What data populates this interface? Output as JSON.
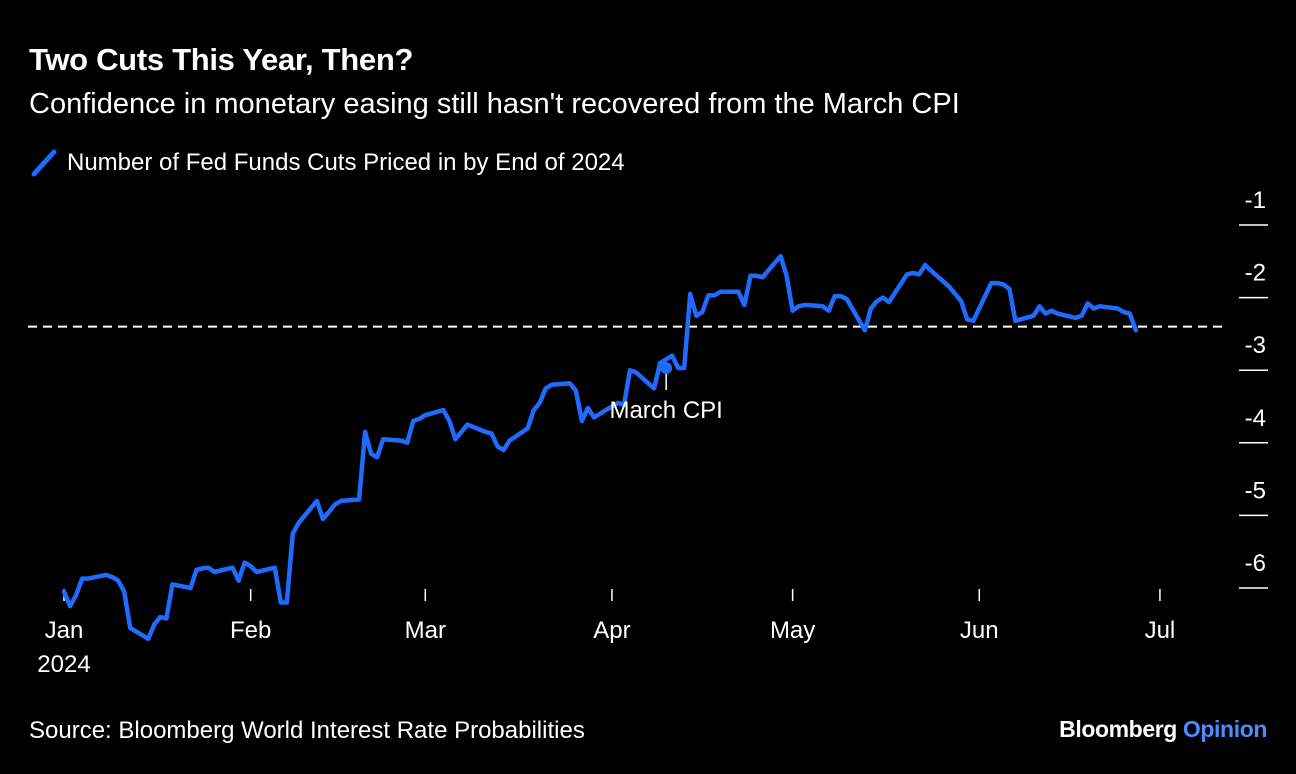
{
  "header": {
    "title": "Two Cuts This Year, Then?",
    "subtitle": "Confidence in monetary easing still hasn't recovered from the March CPI"
  },
  "footer": {
    "source": "Source: Bloomberg World Interest Rate Probabilities",
    "brand_primary": "Bloomberg",
    "brand_secondary": "Opinion"
  },
  "colors": {
    "background": "#000000",
    "series": "#1f6bff",
    "text": "#ffffff",
    "brand_accent": "#4b8dff"
  },
  "chart_data": {
    "type": "line",
    "title": "Two Cuts This Year, Then?",
    "subtitle": "Confidence in monetary easing still hasn't recovered from the March CPI",
    "series": [
      {
        "name": "Number of Fed Funds Cuts Priced in by End of 2024",
        "points": [
          [
            "2024-01-01",
            -6.05
          ],
          [
            "2024-01-02",
            -6.25
          ],
          [
            "2024-01-03",
            -6.1
          ],
          [
            "2024-01-04",
            -5.87
          ],
          [
            "2024-01-05",
            -5.87
          ],
          [
            "2024-01-08",
            -5.82
          ],
          [
            "2024-01-09",
            -5.85
          ],
          [
            "2024-01-10",
            -5.9
          ],
          [
            "2024-01-11",
            -6.05
          ],
          [
            "2024-01-12",
            -6.55
          ],
          [
            "2024-01-15",
            -6.7
          ],
          [
            "2024-01-16",
            -6.5
          ],
          [
            "2024-01-17",
            -6.4
          ],
          [
            "2024-01-18",
            -6.42
          ],
          [
            "2024-01-19",
            -5.95
          ],
          [
            "2024-01-22",
            -6.0
          ],
          [
            "2024-01-23",
            -5.75
          ],
          [
            "2024-01-24",
            -5.73
          ],
          [
            "2024-01-25",
            -5.72
          ],
          [
            "2024-01-26",
            -5.78
          ],
          [
            "2024-01-29",
            -5.72
          ],
          [
            "2024-01-30",
            -5.9
          ],
          [
            "2024-01-31",
            -5.65
          ],
          [
            "2024-02-01",
            -5.7
          ],
          [
            "2024-02-02",
            -5.78
          ],
          [
            "2024-02-05",
            -5.72
          ],
          [
            "2024-02-06",
            -6.2
          ],
          [
            "2024-02-07",
            -6.2
          ],
          [
            "2024-02-08",
            -5.25
          ],
          [
            "2024-02-09",
            -5.1
          ],
          [
            "2024-02-12",
            -4.8
          ],
          [
            "2024-02-13",
            -5.05
          ],
          [
            "2024-02-14",
            -4.95
          ],
          [
            "2024-02-15",
            -4.85
          ],
          [
            "2024-02-16",
            -4.8
          ],
          [
            "2024-02-19",
            -4.78
          ],
          [
            "2024-02-20",
            -3.85
          ],
          [
            "2024-02-21",
            -4.15
          ],
          [
            "2024-02-22",
            -4.2
          ],
          [
            "2024-02-23",
            -3.95
          ],
          [
            "2024-02-26",
            -3.97
          ],
          [
            "2024-02-27",
            -4.0
          ],
          [
            "2024-02-28",
            -3.7
          ],
          [
            "2024-02-29",
            -3.67
          ],
          [
            "2024-03-01",
            -3.62
          ],
          [
            "2024-03-04",
            -3.55
          ],
          [
            "2024-03-05",
            -3.7
          ],
          [
            "2024-03-06",
            -3.95
          ],
          [
            "2024-03-07",
            -3.85
          ],
          [
            "2024-03-08",
            -3.75
          ],
          [
            "2024-03-11",
            -3.85
          ],
          [
            "2024-03-12",
            -3.87
          ],
          [
            "2024-03-13",
            -4.05
          ],
          [
            "2024-03-14",
            -4.1
          ],
          [
            "2024-03-15",
            -3.97
          ],
          [
            "2024-03-18",
            -3.8
          ],
          [
            "2024-03-19",
            -3.55
          ],
          [
            "2024-03-20",
            -3.45
          ],
          [
            "2024-03-21",
            -3.25
          ],
          [
            "2024-03-22",
            -3.2
          ],
          [
            "2024-03-25",
            -3.18
          ],
          [
            "2024-03-26",
            -3.28
          ],
          [
            "2024-03-27",
            -3.7
          ],
          [
            "2024-03-28",
            -3.52
          ],
          [
            "2024-03-29",
            -3.65
          ],
          [
            "2024-04-01",
            -3.5
          ],
          [
            "2024-04-02",
            -3.45
          ],
          [
            "2024-04-03",
            -3.48
          ],
          [
            "2024-04-04",
            -3.0
          ],
          [
            "2024-04-05",
            -3.03
          ],
          [
            "2024-04-08",
            -3.25
          ],
          [
            "2024-04-09",
            -2.9
          ],
          [
            "2024-04-10",
            -2.85
          ],
          [
            "2024-04-11",
            -2.8
          ],
          [
            "2024-04-12",
            -2.97
          ],
          [
            "2024-04-13",
            -2.97
          ],
          [
            "2024-04-14",
            -1.95
          ],
          [
            "2024-04-15",
            -2.25
          ],
          [
            "2024-04-16",
            -2.2
          ],
          [
            "2024-04-17",
            -1.97
          ],
          [
            "2024-04-18",
            -1.97
          ],
          [
            "2024-04-19",
            -1.92
          ],
          [
            "2024-04-22",
            -1.92
          ],
          [
            "2024-04-23",
            -2.1
          ],
          [
            "2024-04-24",
            -1.7
          ],
          [
            "2024-04-25",
            -1.7
          ],
          [
            "2024-04-26",
            -1.72
          ],
          [
            "2024-04-29",
            -1.43
          ],
          [
            "2024-04-30",
            -1.7
          ],
          [
            "2024-05-01",
            -2.18
          ],
          [
            "2024-05-02",
            -2.12
          ],
          [
            "2024-05-03",
            -2.1
          ],
          [
            "2024-05-06",
            -2.12
          ],
          [
            "2024-05-07",
            -2.18
          ],
          [
            "2024-05-08",
            -1.98
          ],
          [
            "2024-05-09",
            -1.98
          ],
          [
            "2024-05-10",
            -2.02
          ],
          [
            "2024-05-13",
            -2.45
          ],
          [
            "2024-05-14",
            -2.15
          ],
          [
            "2024-05-15",
            -2.05
          ],
          [
            "2024-05-16",
            -2.0
          ],
          [
            "2024-05-17",
            -2.06
          ],
          [
            "2024-05-20",
            -1.68
          ],
          [
            "2024-05-21",
            -1.66
          ],
          [
            "2024-05-22",
            -1.68
          ],
          [
            "2024-05-23",
            -1.55
          ],
          [
            "2024-05-24",
            -1.63
          ],
          [
            "2024-05-27",
            -1.85
          ],
          [
            "2024-05-28",
            -1.95
          ],
          [
            "2024-05-29",
            -2.05
          ],
          [
            "2024-05-30",
            -2.3
          ],
          [
            "2024-05-31",
            -2.32
          ],
          [
            "2024-06-03",
            -1.8
          ],
          [
            "2024-06-04",
            -1.8
          ],
          [
            "2024-06-05",
            -1.82
          ],
          [
            "2024-06-06",
            -1.88
          ],
          [
            "2024-06-07",
            -2.32
          ],
          [
            "2024-06-10",
            -2.25
          ],
          [
            "2024-06-11",
            -2.12
          ],
          [
            "2024-06-12",
            -2.22
          ],
          [
            "2024-06-13",
            -2.18
          ],
          [
            "2024-06-14",
            -2.22
          ],
          [
            "2024-06-17",
            -2.28
          ],
          [
            "2024-06-18",
            -2.25
          ],
          [
            "2024-06-19",
            -2.08
          ],
          [
            "2024-06-20",
            -2.15
          ],
          [
            "2024-06-21",
            -2.12
          ],
          [
            "2024-06-24",
            -2.15
          ],
          [
            "2024-06-25",
            -2.2
          ],
          [
            "2024-06-26",
            -2.22
          ],
          [
            "2024-06-27",
            -2.45
          ]
        ]
      }
    ],
    "x_ticks": [
      "Jan",
      "Feb",
      "Mar",
      "Apr",
      "May",
      "Jun",
      "Jul"
    ],
    "x_tick_dates": [
      "2024-01-01",
      "2024-02-01",
      "2024-03-01",
      "2024-04-01",
      "2024-05-01",
      "2024-06-01",
      "2024-07-01"
    ],
    "x_year_label": "2024",
    "xlim": [
      "2024-01-01",
      "2024-07-04"
    ],
    "y_ticks": [
      -1,
      -2,
      -3,
      -4,
      -5,
      -6
    ],
    "y_tick_labels": [
      "-1",
      "-2",
      "-3",
      "-4",
      "-5",
      "-6"
    ],
    "ylim": [
      -6.3,
      -1.0
    ],
    "y_axis_side": "right",
    "reference_line": {
      "y": -2.4,
      "style": "dashed"
    },
    "annotation": {
      "date": "2024-04-10",
      "value": -2.97,
      "text": "March CPI"
    },
    "grid": false,
    "legend_position": "top-left"
  }
}
